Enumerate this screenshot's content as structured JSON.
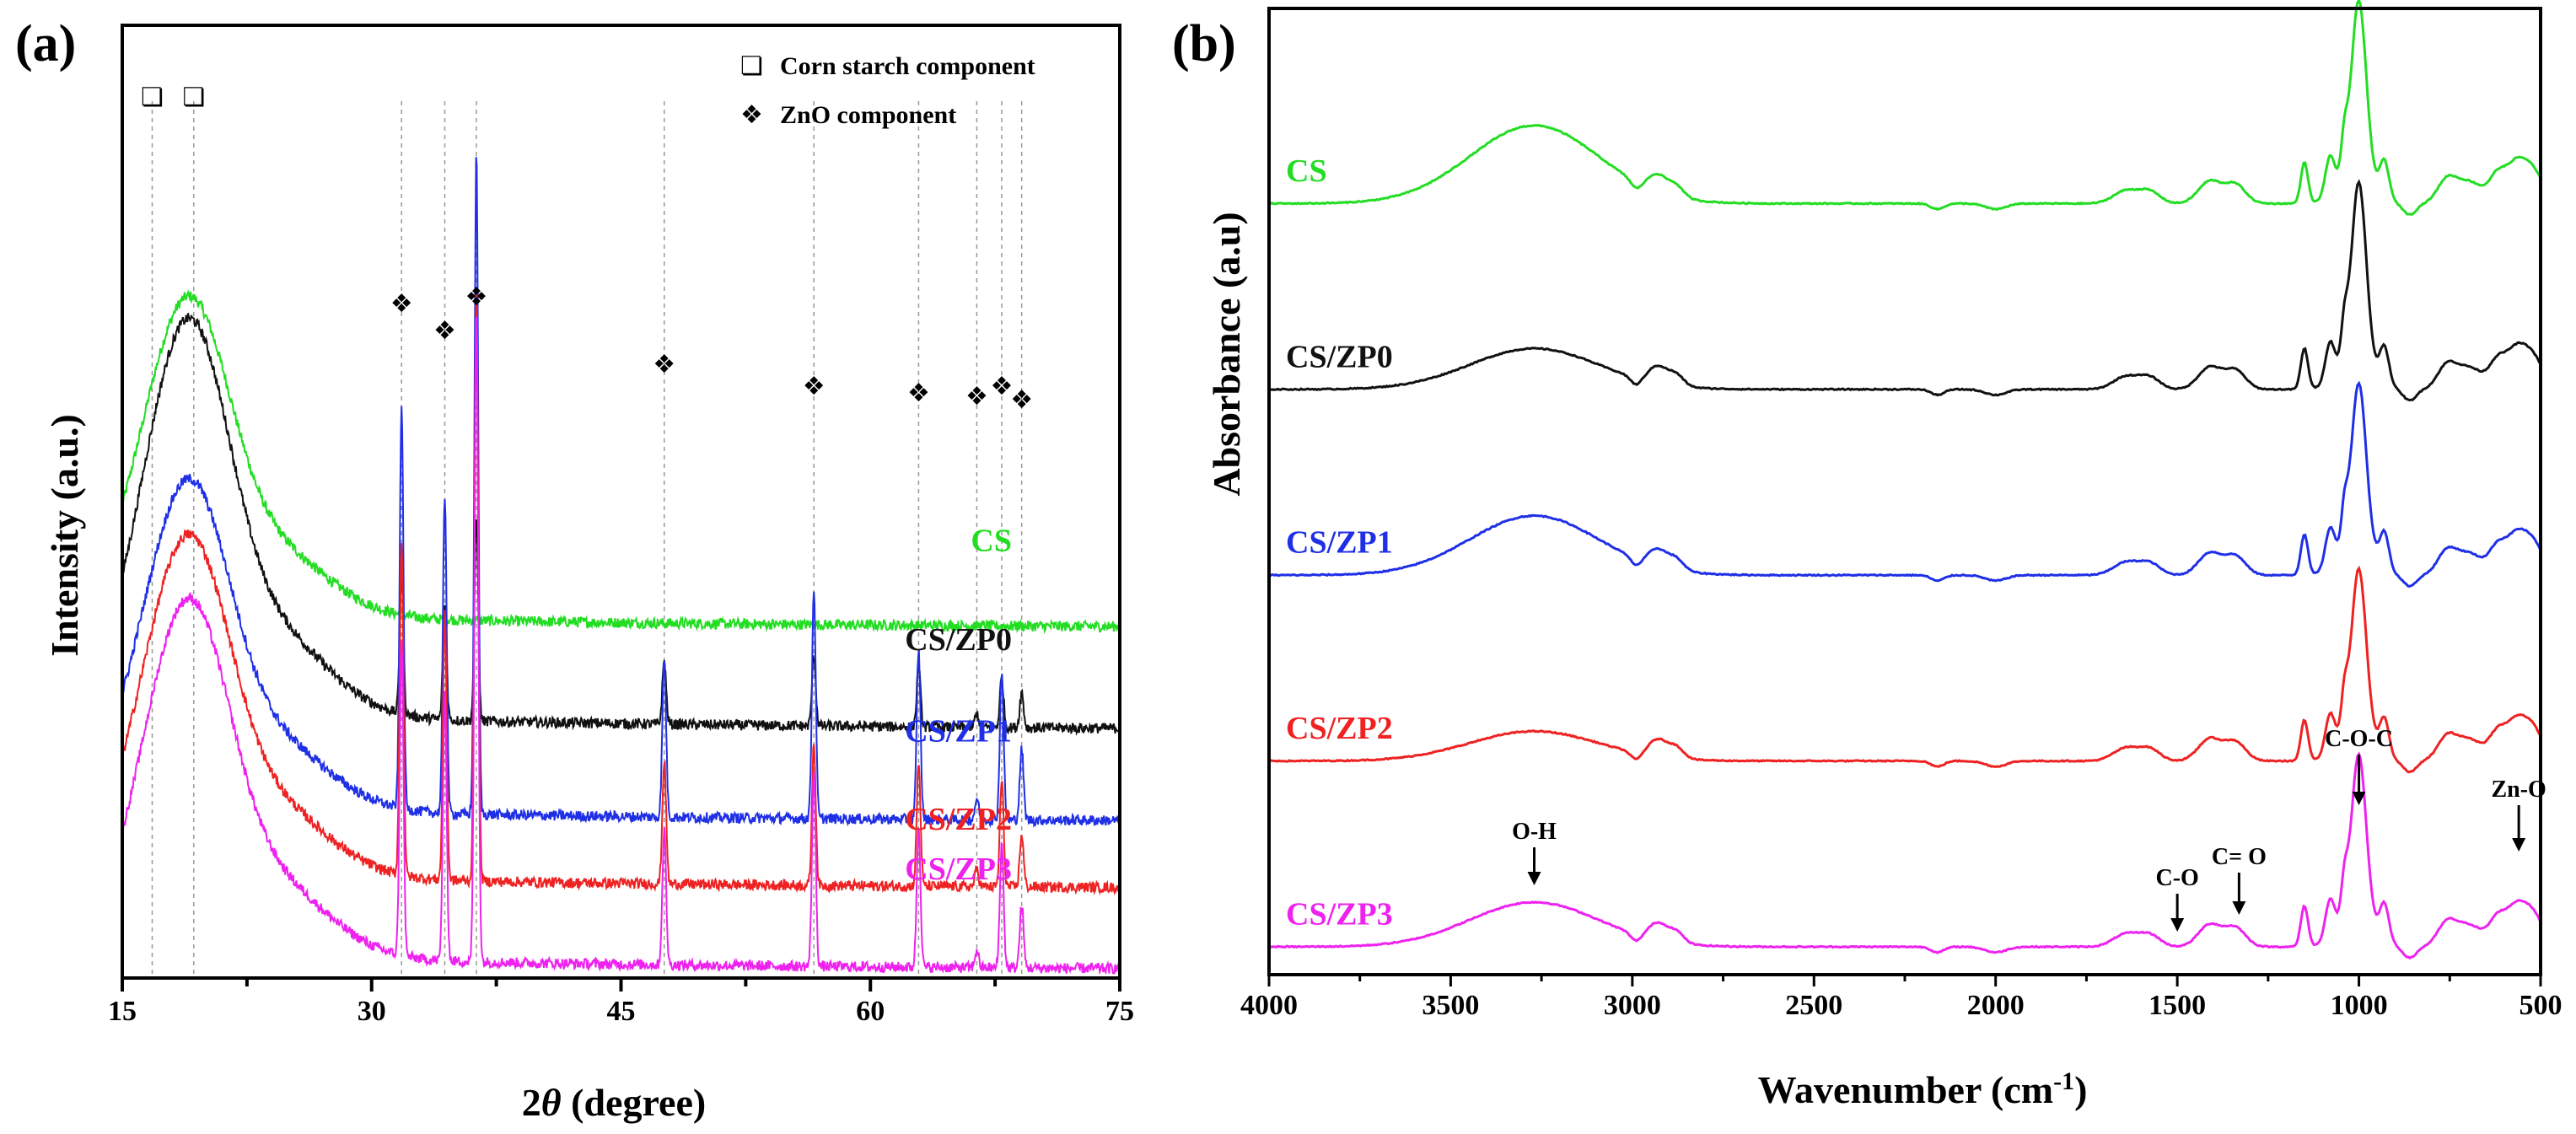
{
  "chart_data": [
    {
      "type": "line",
      "panel_label": "(a)",
      "xlabel_prefix": "2",
      "xlabel_symbol": "θ",
      "xlabel_suffix": " (degree)",
      "ylabel": "Intensity (a.u.)",
      "xlim": [
        15,
        75
      ],
      "x_ticks": [
        15,
        30,
        45,
        60,
        75
      ],
      "legend": [
        {
          "symbol": "❏",
          "label": "Corn starch component"
        },
        {
          "symbol": "❖",
          "label": "ZnO component"
        }
      ],
      "starch_peaks": [
        16.8,
        19.3
      ],
      "zno_peaks": [
        31.8,
        34.4,
        36.3,
        47.6,
        56.6,
        62.9,
        66.4,
        67.9,
        69.1
      ],
      "series": [
        {
          "name": "CS",
          "color": "#22dd22",
          "baseline": 0.92,
          "broad_amp": 0.58,
          "has_zno": false,
          "zno_heights": [
            0,
            0,
            0,
            0,
            0,
            0,
            0,
            0,
            0
          ]
        },
        {
          "name": "CS/ZP0",
          "color": "#111111",
          "baseline": 0.63,
          "broad_amp": 0.72,
          "has_zno": true,
          "zno_heights": [
            0.4,
            0.32,
            0.58,
            0.18,
            0.2,
            0.17,
            0.04,
            0.14,
            0.1
          ]
        },
        {
          "name": "CS/ZP1",
          "color": "#1f2fe6",
          "baseline": 0.37,
          "broad_amp": 0.6,
          "has_zno": true,
          "zno_heights": [
            1.15,
            0.9,
            1.88,
            0.45,
            0.65,
            0.48,
            0.06,
            0.42,
            0.2
          ]
        },
        {
          "name": "CS/ZP2",
          "color": "#ee2222",
          "baseline": 0.18,
          "broad_amp": 0.62,
          "has_zno": true,
          "zno_heights": [
            0.95,
            0.75,
            1.7,
            0.35,
            0.4,
            0.35,
            0.05,
            0.3,
            0.15
          ]
        },
        {
          "name": "CS/ZP3",
          "color": "#ee22ee",
          "baseline": -0.05,
          "broad_amp": 0.65,
          "has_zno": true,
          "zno_heights": [
            0.9,
            0.75,
            1.85,
            0.38,
            0.55,
            0.4,
            0.05,
            0.35,
            0.18
          ]
        }
      ],
      "ylim": [
        -0.1,
        2.6
      ]
    },
    {
      "type": "line",
      "panel_label": "(b)",
      "xlabel": "Wavenumber (cm",
      "xlabel_sup": "-1",
      "xlabel_end": ")",
      "ylabel": "Absorbance (a.u)",
      "xlim": [
        4000,
        500
      ],
      "x_ticks": [
        4000,
        3500,
        3000,
        2500,
        2000,
        1500,
        1000,
        500
      ],
      "series": [
        {
          "name": "CS",
          "color": "#22dd22",
          "offset": 4.0,
          "oh": 0.42,
          "main": 0.88
        },
        {
          "name": "CS/ZP0",
          "color": "#111111",
          "offset": 3.0,
          "oh": 0.22,
          "main": 0.9
        },
        {
          "name": "CS/ZP1",
          "color": "#1f2fe6",
          "offset": 2.0,
          "oh": 0.32,
          "main": 0.82
        },
        {
          "name": "CS/ZP2",
          "color": "#ee2222",
          "offset": 1.0,
          "oh": 0.16,
          "main": 0.82
        },
        {
          "name": "CS/ZP3",
          "color": "#ee22ee",
          "offset": 0.0,
          "oh": 0.24,
          "main": 0.82
        }
      ],
      "annotations": [
        {
          "label": "O-H",
          "x": 3270
        },
        {
          "label": "C-O",
          "x": 1500
        },
        {
          "label": "C= O",
          "x": 1330
        },
        {
          "label": "C-O-C",
          "x": 1000
        },
        {
          "label": "Zn-O",
          "x": 560
        }
      ],
      "ylim": [
        -0.15,
        5.05
      ]
    }
  ]
}
